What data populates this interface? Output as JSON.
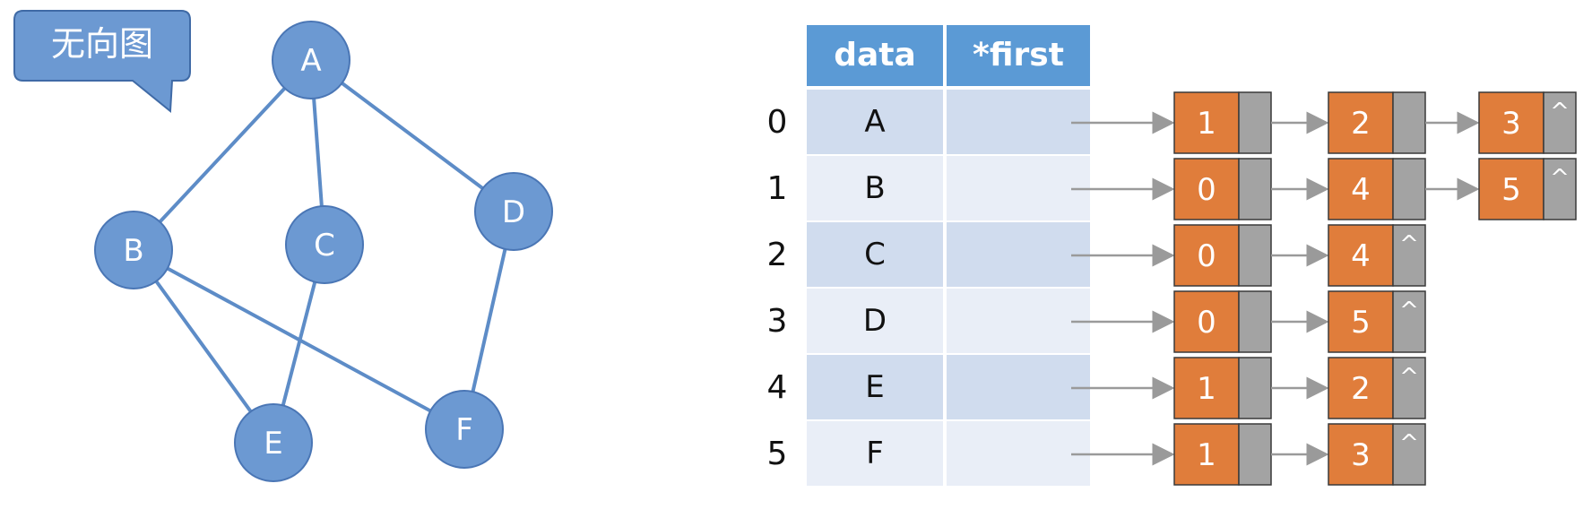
{
  "callout": {
    "label": "无向图"
  },
  "graph": {
    "nodes": [
      {
        "id": "A",
        "label": "A"
      },
      {
        "id": "B",
        "label": "B"
      },
      {
        "id": "C",
        "label": "C"
      },
      {
        "id": "D",
        "label": "D"
      },
      {
        "id": "E",
        "label": "E"
      },
      {
        "id": "F",
        "label": "F"
      }
    ],
    "edges": [
      [
        "A",
        "B"
      ],
      [
        "A",
        "C"
      ],
      [
        "A",
        "D"
      ],
      [
        "B",
        "E"
      ],
      [
        "B",
        "F"
      ],
      [
        "C",
        "E"
      ],
      [
        "D",
        "F"
      ]
    ]
  },
  "table": {
    "headers": [
      "data",
      "*first"
    ],
    "rows": [
      {
        "index": "0",
        "data": "A",
        "adj": [
          "1",
          "2",
          "3"
        ]
      },
      {
        "index": "1",
        "data": "B",
        "adj": [
          "0",
          "4",
          "5"
        ]
      },
      {
        "index": "2",
        "data": "C",
        "adj": [
          "0",
          "4"
        ]
      },
      {
        "index": "3",
        "data": "D",
        "adj": [
          "0",
          "5"
        ]
      },
      {
        "index": "4",
        "data": "E",
        "adj": [
          "1",
          "2"
        ]
      },
      {
        "index": "5",
        "data": "F",
        "adj": [
          "1",
          "3"
        ]
      }
    ],
    "null_symbol": "^"
  },
  "colors": {
    "node_fill": "#6c99d2",
    "edge": "#5d8cc7",
    "header": "#5b9ad5",
    "list_node": "#e07d3b",
    "pointer_field": "#a3a3a3"
  }
}
